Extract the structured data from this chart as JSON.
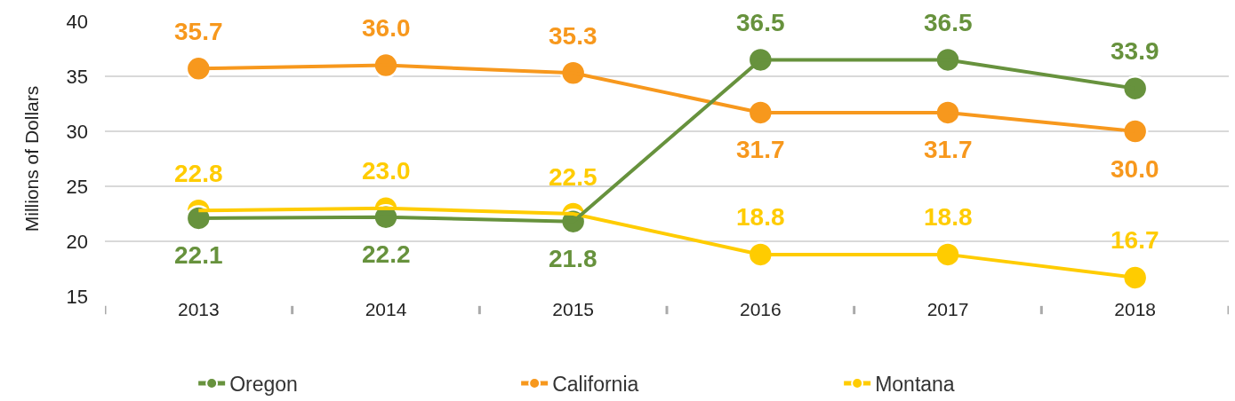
{
  "chart_data": {
    "type": "line",
    "ylabel": "Millions of Dollars",
    "categories": [
      "2013",
      "2014",
      "2015",
      "2016",
      "2017",
      "2018"
    ],
    "series": [
      {
        "name": "Oregon",
        "color": "#67923d",
        "values": [
          22.1,
          22.2,
          21.8,
          36.5,
          36.5,
          33.9
        ],
        "value_labels": [
          "22.1",
          "22.2",
          "21.8",
          "36.5",
          "36.5",
          "33.9"
        ]
      },
      {
        "name": "California",
        "color": "#f7981d",
        "values": [
          35.7,
          36.0,
          35.3,
          31.7,
          31.7,
          30.0
        ],
        "value_labels": [
          "35.7",
          "36.0",
          "35.3",
          "31.7",
          "31.7",
          "30.0"
        ]
      },
      {
        "name": "Montana",
        "color": "#ffcc00",
        "values": [
          22.8,
          23.0,
          22.5,
          18.8,
          18.8,
          16.7
        ],
        "value_labels": [
          "22.8",
          "23.0",
          "22.5",
          "18.8",
          "18.8",
          "16.7"
        ]
      }
    ],
    "ylim": [
      15,
      40
    ],
    "yticks": [
      15,
      20,
      25,
      30,
      35,
      40
    ],
    "grid": "y",
    "legend": "bottom",
    "marker": "circle",
    "line_style": "solid"
  }
}
